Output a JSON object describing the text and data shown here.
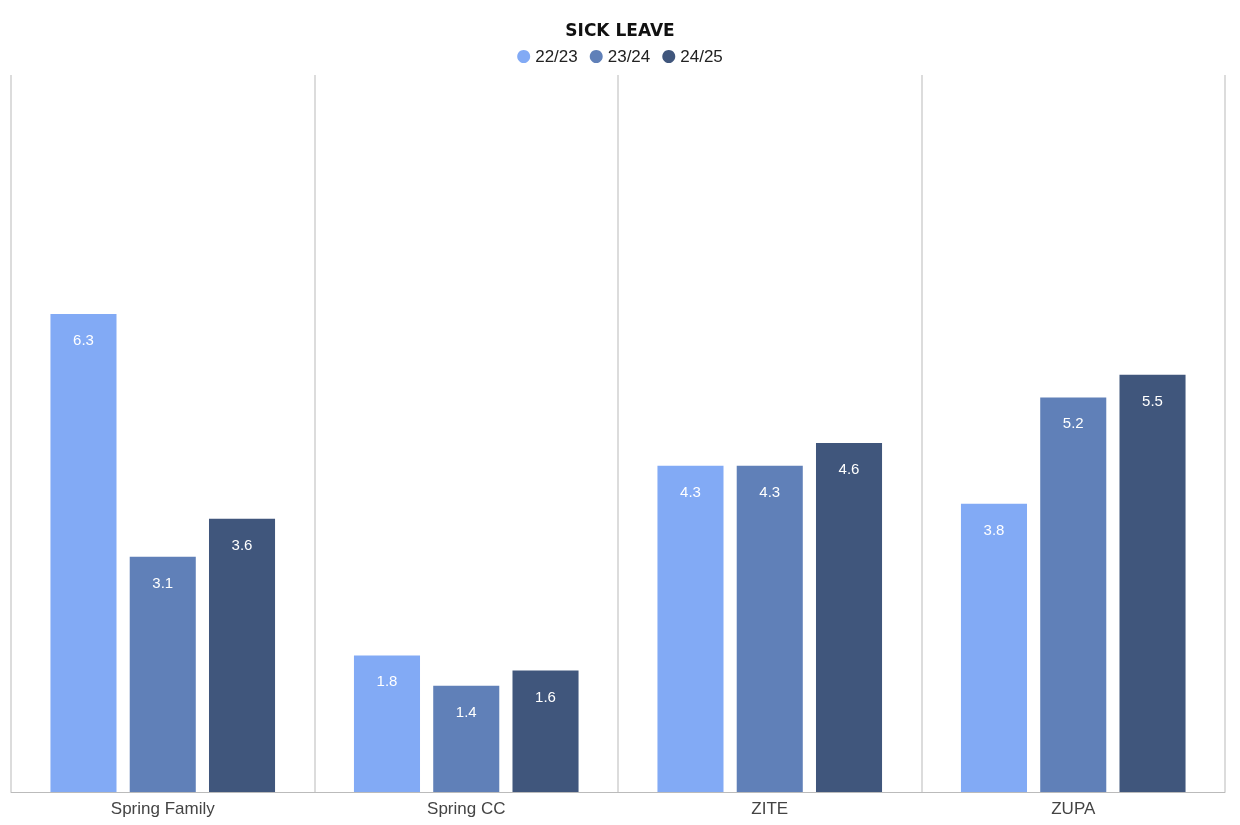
{
  "chart_data": {
    "type": "bar",
    "title": "SICK LEAVE",
    "categories": [
      "Spring Family",
      "Spring CC",
      "ZITE",
      "ZUPA"
    ],
    "series": [
      {
        "name": "22/23",
        "color": "#82aaf5",
        "values": [
          6.3,
          1.8,
          4.3,
          3.8
        ]
      },
      {
        "name": "23/24",
        "color": "#6080b8",
        "values": [
          3.1,
          1.4,
          4.3,
          5.2
        ]
      },
      {
        "name": "24/25",
        "color": "#40567c",
        "values": [
          3.6,
          1.6,
          4.6,
          5.5
        ]
      }
    ],
    "data_labels": true,
    "grid": "x",
    "legend": "top"
  }
}
